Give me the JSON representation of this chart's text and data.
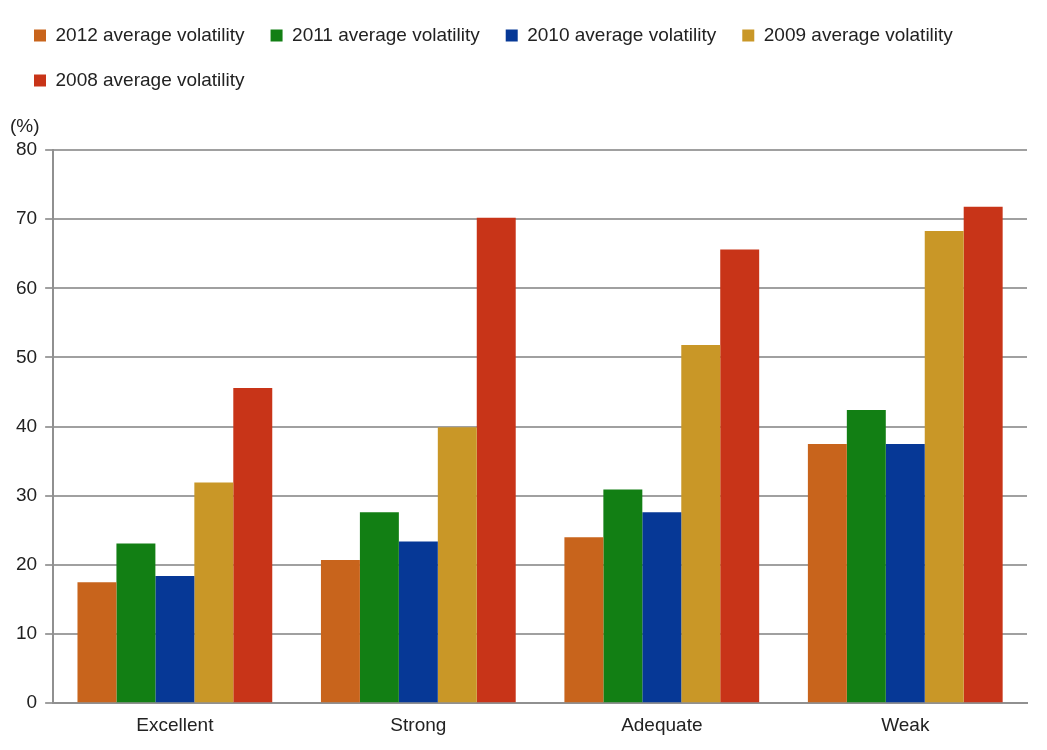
{
  "chart_data": {
    "type": "bar",
    "ylabel": "(%)",
    "categories": [
      "Excellent",
      "Strong",
      "Adequate",
      "Weak"
    ],
    "series": [
      {
        "name": "2012 average volatility",
        "color": "#c8641c",
        "values": [
          17.5,
          20.7,
          24.0,
          37.5
        ]
      },
      {
        "name": "2011 average volatility",
        "color": "#127f14",
        "values": [
          23.1,
          27.6,
          30.9,
          42.4
        ]
      },
      {
        "name": "2010 average volatility",
        "color": "#063896",
        "values": [
          18.4,
          23.4,
          27.6,
          37.5
        ]
      },
      {
        "name": "2009 average volatility",
        "color": "#c99727",
        "values": [
          31.9,
          39.9,
          51.8,
          68.3
        ]
      },
      {
        "name": "2008 average volatility",
        "color": "#c83418",
        "values": [
          45.6,
          70.2,
          65.6,
          71.8
        ]
      }
    ],
    "ylim": [
      0,
      80
    ],
    "yticks": [
      0,
      10,
      20,
      30,
      40,
      50,
      60,
      70,
      80
    ],
    "grid": "y",
    "legend": "top left"
  }
}
